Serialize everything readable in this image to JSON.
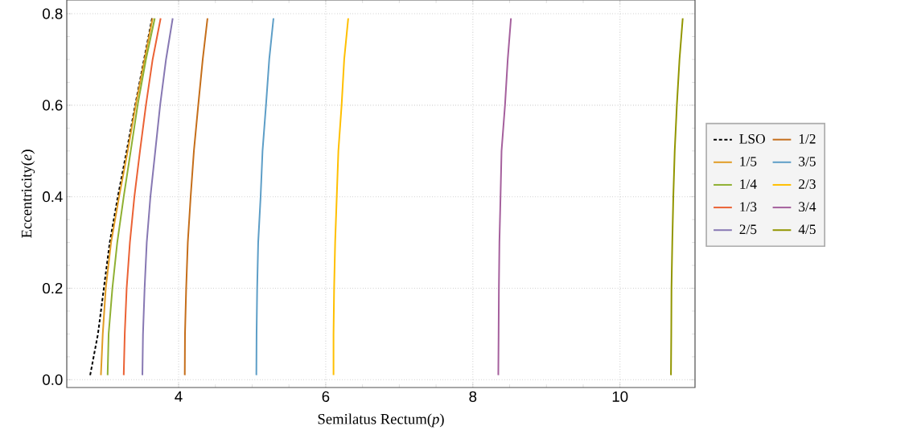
{
  "chart_data": {
    "type": "line",
    "xlabel": "Semilatus Rectum(*p*)",
    "ylabel": "Eccentricity(*e*)",
    "xlim": [
      2.48,
      11.02
    ],
    "ylim": [
      -0.017,
      0.83
    ],
    "xticks": [
      4,
      6,
      8,
      10
    ],
    "yticks": [
      {
        "value": 0,
        "label": "0.0"
      },
      {
        "value": 0.2,
        "label": "0.2"
      },
      {
        "value": 0.4,
        "label": "0.4"
      },
      {
        "value": 0.6,
        "label": "0.6"
      },
      {
        "value": 0.8,
        "label": "0.8"
      }
    ],
    "grid": true,
    "legend": "right",
    "series": [
      {
        "name": "LSO",
        "color": "#000000",
        "line_style": "dashed",
        "x": [
          2.798,
          2.904,
          2.984,
          3.064,
          3.174,
          3.294,
          3.41,
          3.53,
          3.639
        ],
        "values": [
          0.01,
          0.1,
          0.2,
          0.3,
          0.4,
          0.5,
          0.6,
          0.7,
          0.79
        ]
      },
      {
        "name": "1/5",
        "color": "#e19c24",
        "x": [
          2.944,
          2.969,
          3.01,
          3.082,
          3.191,
          3.308,
          3.417,
          3.538,
          3.647
        ],
        "values": [
          0.01,
          0.1,
          0.2,
          0.3,
          0.4,
          0.5,
          0.6,
          0.7,
          0.79
        ]
      },
      {
        "name": "1/4",
        "color": "#8fb032",
        "x": [
          3.035,
          3.049,
          3.1,
          3.166,
          3.254,
          3.349,
          3.443,
          3.556,
          3.676
        ],
        "values": [
          0.01,
          0.1,
          0.2,
          0.3,
          0.4,
          0.5,
          0.6,
          0.7,
          0.79
        ]
      },
      {
        "name": "1/3",
        "color": "#eb6235",
        "x": [
          3.254,
          3.268,
          3.294,
          3.338,
          3.399,
          3.475,
          3.556,
          3.647,
          3.756
        ],
        "values": [
          0.01,
          0.1,
          0.2,
          0.3,
          0.4,
          0.5,
          0.6,
          0.7,
          0.79
        ]
      },
      {
        "name": "2/5",
        "color": "#8778b3",
        "x": [
          3.508,
          3.516,
          3.538,
          3.567,
          3.617,
          3.683,
          3.749,
          3.829,
          3.92
        ],
        "values": [
          0.01,
          0.1,
          0.2,
          0.3,
          0.4,
          0.5,
          0.6,
          0.7,
          0.79
        ]
      },
      {
        "name": "1/2",
        "color": "#c56e1a",
        "x": [
          4.084,
          4.087,
          4.103,
          4.125,
          4.164,
          4.208,
          4.267,
          4.328,
          4.393
        ],
        "values": [
          0.01,
          0.1,
          0.2,
          0.3,
          0.4,
          0.5,
          0.6,
          0.7,
          0.79
        ]
      },
      {
        "name": "3/5",
        "color": "#5d9ec7",
        "x": [
          5.057,
          5.06,
          5.068,
          5.082,
          5.115,
          5.141,
          5.188,
          5.232,
          5.29
        ],
        "values": [
          0.01,
          0.1,
          0.2,
          0.3,
          0.4,
          0.5,
          0.6,
          0.7,
          0.79
        ]
      },
      {
        "name": "2/3",
        "color": "#ffbf00",
        "x": [
          6.106,
          6.106,
          6.114,
          6.128,
          6.15,
          6.172,
          6.216,
          6.251,
          6.306
        ],
        "values": [
          0.01,
          0.1,
          0.2,
          0.3,
          0.4,
          0.5,
          0.6,
          0.7,
          0.79
        ]
      },
      {
        "name": "3/4",
        "color": "#a5609d",
        "x": [
          8.346,
          8.35,
          8.354,
          8.361,
          8.376,
          8.39,
          8.437,
          8.474,
          8.518
        ],
        "values": [
          0.01,
          0.1,
          0.2,
          0.3,
          0.4,
          0.5,
          0.6,
          0.7,
          0.79
        ]
      },
      {
        "name": "4/5",
        "color": "#929600",
        "x": [
          10.693,
          10.697,
          10.7,
          10.711,
          10.725,
          10.744,
          10.773,
          10.809,
          10.853
        ],
        "values": [
          0.01,
          0.1,
          0.2,
          0.3,
          0.4,
          0.5,
          0.6,
          0.7,
          0.79
        ]
      }
    ]
  }
}
